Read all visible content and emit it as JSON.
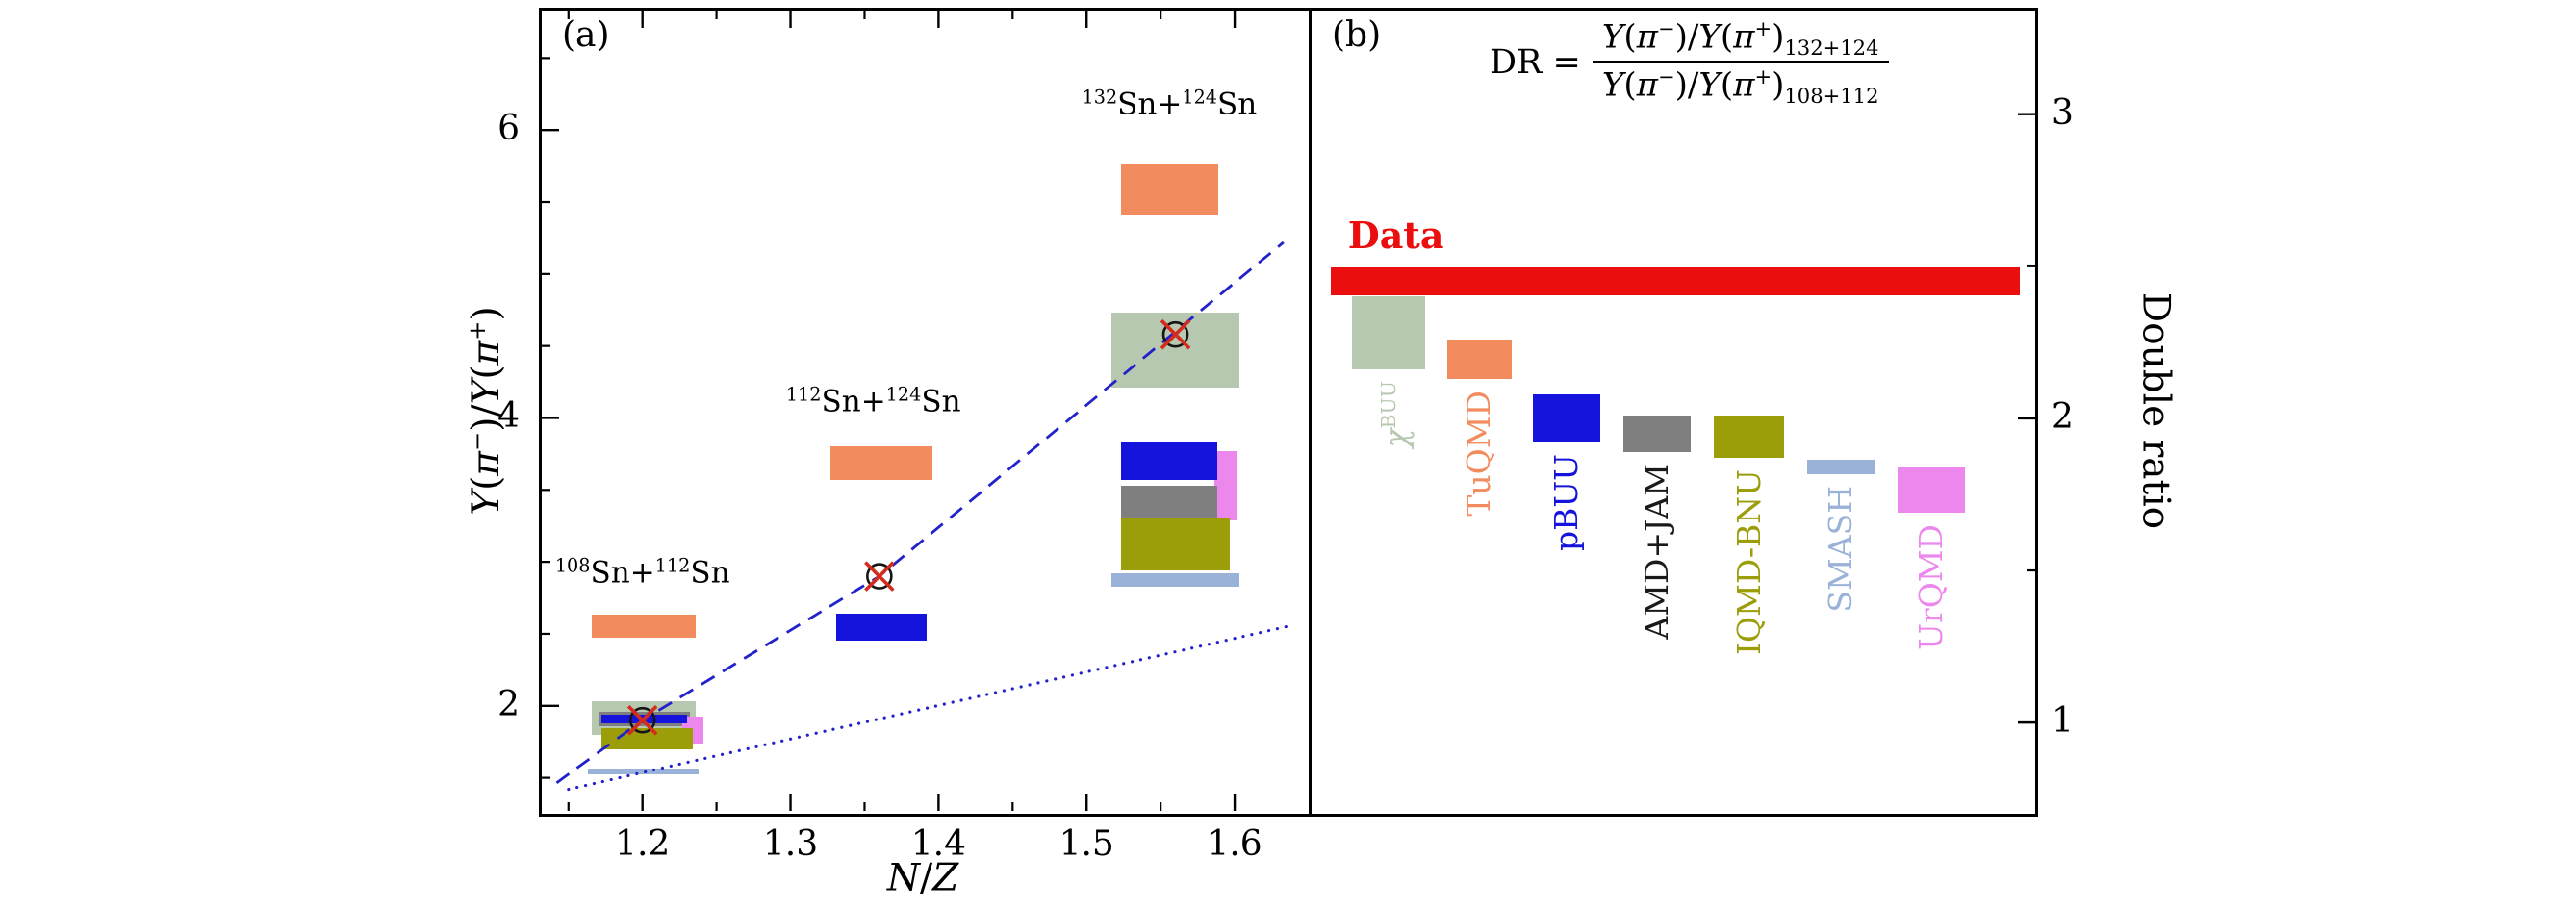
{
  "chart_data": [
    {
      "type": "scatter",
      "panel_label": "(a)",
      "xlabel": "N/Z",
      "xlabel_parts": [
        {
          "t": "N",
          "i": true
        },
        {
          "t": "/"
        },
        {
          "t": "Z",
          "i": true
        }
      ],
      "ylabel": "Y(π−)/Y(π+)",
      "ylabel_parts": [
        {
          "t": "Y",
          "i": true
        },
        {
          "t": "("
        },
        {
          "t": "π",
          "i": true
        },
        {
          "t": "−",
          "sup": true
        },
        {
          "t": ")/"
        },
        {
          "t": "Y",
          "i": true
        },
        {
          "t": "("
        },
        {
          "t": "π",
          "i": true
        },
        {
          "t": "+",
          "sup": true
        },
        {
          "t": ")"
        }
      ],
      "xlim": [
        1.13,
        1.65
      ],
      "ylim": [
        1.25,
        6.85
      ],
      "xticks": [
        1.2,
        1.3,
        1.4,
        1.5,
        1.6
      ],
      "xticks_minor": [
        1.15,
        1.25,
        1.35,
        1.45,
        1.55
      ],
      "yticks": [
        2,
        4,
        6
      ],
      "yticks_minor": [
        1.5,
        2.5,
        3,
        3.5,
        4.5,
        5,
        5.5,
        6.5
      ],
      "grid": false,
      "systems": [
        {
          "name": "108Sn+112Sn",
          "label_parts": [
            {
              "t": "108",
              "sup": true
            },
            {
              "t": "Sn+"
            },
            {
              "t": "112",
              "sup": true
            },
            {
              "t": "Sn"
            }
          ],
          "x": 1.2,
          "label_x": 1.2,
          "label_y": 2.93,
          "ratio": 1.9
        },
        {
          "name": "112Sn+124Sn",
          "label_parts": [
            {
              "t": "112",
              "sup": true
            },
            {
              "t": "Sn+"
            },
            {
              "t": "124",
              "sup": true
            },
            {
              "t": "Sn"
            }
          ],
          "x": 1.36,
          "label_x": 1.356,
          "label_y": 4.12,
          "ratio": 2.9
        },
        {
          "name": "132Sn+124Sn",
          "label_parts": [
            {
              "t": "132",
              "sup": true
            },
            {
              "t": "Sn+"
            },
            {
              "t": "124",
              "sup": true
            },
            {
              "t": "Sn"
            }
          ],
          "x": 1.56,
          "label_x": 1.556,
          "label_y": 6.18,
          "ratio": 4.58
        }
      ],
      "data_points": [
        {
          "x": 1.2,
          "y": 1.9
        },
        {
          "x": 1.36,
          "y": 2.9
        },
        {
          "x": 1.56,
          "y": 4.58
        }
      ],
      "marker": {
        "shape": "circled-x",
        "x_color": "#d42b1f",
        "circle_color": "#151515"
      },
      "model_boxes": [
        {
          "model": "TuQMD",
          "x0": 1.166,
          "x1": 1.236,
          "y0": 2.47,
          "y1": 2.63,
          "color": "#f28c5e"
        },
        {
          "model": "chiBUU",
          "x0": 1.166,
          "x1": 1.236,
          "y0": 1.8,
          "y1": 2.03,
          "color": "#b6c8af"
        },
        {
          "model": "AMD+JAM",
          "x0": 1.17,
          "x1": 1.232,
          "y0": 1.855,
          "y1": 1.96,
          "color": "#7f7f7f"
        },
        {
          "model": "UrQMD",
          "x0": 1.227,
          "x1": 1.241,
          "y0": 1.74,
          "y1": 1.925,
          "color": "#ec87ee"
        },
        {
          "model": "pBUU",
          "x0": 1.172,
          "x1": 1.23,
          "y0": 1.875,
          "y1": 1.935,
          "color": "#1414dc"
        },
        {
          "model": "IQMD-BNU",
          "x0": 1.172,
          "x1": 1.234,
          "y0": 1.7,
          "y1": 1.845,
          "color": "#9b9d09"
        },
        {
          "model": "SMASH",
          "x0": 1.163,
          "x1": 1.238,
          "y0": 1.525,
          "y1": 1.565,
          "color": "#9ab2d8"
        },
        {
          "model": "TuQMD",
          "x0": 1.327,
          "x1": 1.396,
          "y0": 3.57,
          "y1": 3.8,
          "color": "#f28c5e"
        },
        {
          "model": "pBUU",
          "x0": 1.331,
          "x1": 1.392,
          "y0": 2.45,
          "y1": 2.64,
          "color": "#1414dc"
        },
        {
          "model": "TuQMD",
          "x0": 1.523,
          "x1": 1.589,
          "y0": 5.41,
          "y1": 5.76,
          "color": "#f28c5e"
        },
        {
          "model": "chiBUU",
          "x0": 1.517,
          "x1": 1.603,
          "y0": 4.21,
          "y1": 4.73,
          "color": "#b6c8af"
        },
        {
          "model": "UrQMD",
          "x0": 1.586,
          "x1": 1.601,
          "y0": 3.29,
          "y1": 3.77,
          "color": "#ec87ee"
        },
        {
          "model": "pBUU",
          "x0": 1.523,
          "x1": 1.588,
          "y0": 3.57,
          "y1": 3.83,
          "color": "#1414dc"
        },
        {
          "model": "AMD+JAM",
          "x0": 1.523,
          "x1": 1.588,
          "y0": 3.21,
          "y1": 3.53,
          "color": "#7f7f7f"
        },
        {
          "model": "IQMD-BNU",
          "x0": 1.523,
          "x1": 1.597,
          "y0": 2.94,
          "y1": 3.31,
          "color": "#9b9d09"
        },
        {
          "model": "SMASH",
          "x0": 1.517,
          "x1": 1.603,
          "y0": 2.83,
          "y1": 2.92,
          "color": "#9ab2d8"
        }
      ],
      "lines": [
        {
          "name": "trend-dashed",
          "style": "dashed",
          "color": "#2222cc",
          "points": [
            [
              1.142,
              1.465
            ],
            [
              1.2,
              1.9
            ],
            [
              1.36,
              2.9
            ],
            [
              1.56,
              4.6
            ],
            [
              1.633,
              5.22
            ]
          ]
        },
        {
          "name": "reference-dotted",
          "style": "dotted",
          "color": "#2222cc",
          "points": [
            [
              1.15,
              1.42
            ],
            [
              1.635,
              2.55
            ]
          ]
        }
      ]
    },
    {
      "type": "bar",
      "panel_label": "(b)",
      "ylabel_right": "Double ratio",
      "ylim": [
        0.7,
        3.35
      ],
      "yticks": [
        1,
        2,
        3
      ],
      "yticks_minor": [
        1.5,
        2.5
      ],
      "grid": false,
      "formula": {
        "lhs": "DR",
        "eq": "=",
        "ratio_parts": [
          {
            "t": "Y",
            "i": true
          },
          {
            "t": "("
          },
          {
            "t": "π",
            "i": true
          },
          {
            "t": "−",
            "sup": true
          },
          {
            "t": ")/"
          },
          {
            "t": "Y",
            "i": true
          },
          {
            "t": "("
          },
          {
            "t": "π",
            "i": true
          },
          {
            "t": "+",
            "sup": true
          },
          {
            "t": ")"
          }
        ],
        "numerator_sub": "132+124",
        "denominator_sub": "108+112"
      },
      "data_band": {
        "label": "Data",
        "color": "#ea0e0e",
        "value": 2.45,
        "y0": 2.405,
        "y1": 2.495,
        "x0": 0.03,
        "x1": 0.975
      },
      "models": [
        {
          "name": "χBUU",
          "name_parts": [
            {
              "t": "χ",
              "i": true
            },
            {
              "t": "BUU",
              "sup": true
            }
          ],
          "color": "#b6c8af",
          "label_color": "#b6c8af",
          "value": 2.28,
          "y0": 2.16,
          "y1": 2.4,
          "x0": 0.06,
          "x1": 0.16
        },
        {
          "name": "TuQMD",
          "name_parts": [
            {
              "t": "TuQMD"
            }
          ],
          "color": "#f28c5e",
          "label_color": "#f28c5e",
          "value": 2.2,
          "y0": 2.13,
          "y1": 2.26,
          "x0": 0.19,
          "x1": 0.278
        },
        {
          "name": "pBUU",
          "name_parts": [
            {
              "t": "pBUU"
            }
          ],
          "color": "#1414dc",
          "label_color": "#1414dc",
          "value": 2.0,
          "y0": 1.92,
          "y1": 2.08,
          "x0": 0.308,
          "x1": 0.4
        },
        {
          "name": "AMD+JAM",
          "name_parts": [
            {
              "t": "AMD+JAM"
            }
          ],
          "color": "#7f7f7f",
          "label_color": "#1a1a1a",
          "value": 1.95,
          "y0": 1.89,
          "y1": 2.01,
          "x0": 0.432,
          "x1": 0.524
        },
        {
          "name": "IQMD-BNU",
          "name_parts": [
            {
              "t": "IQMD-BNU"
            }
          ],
          "color": "#9b9d09",
          "label_color": "#9b9d09",
          "value": 1.94,
          "y0": 1.87,
          "y1": 2.01,
          "x0": 0.556,
          "x1": 0.652
        },
        {
          "name": "SMASH",
          "name_parts": [
            {
              "t": "SMASH"
            }
          ],
          "color": "#9ab2d8",
          "label_color": "#9ab2d8",
          "value": 1.84,
          "y0": 1.815,
          "y1": 1.865,
          "x0": 0.684,
          "x1": 0.776
        },
        {
          "name": "UrQMD",
          "name_parts": [
            {
              "t": "UrQMD"
            }
          ],
          "color": "#ec87ee",
          "label_color": "#ec87ee",
          "value": 1.77,
          "y0": 1.69,
          "y1": 1.84,
          "x0": 0.808,
          "x1": 0.9
        }
      ]
    }
  ]
}
